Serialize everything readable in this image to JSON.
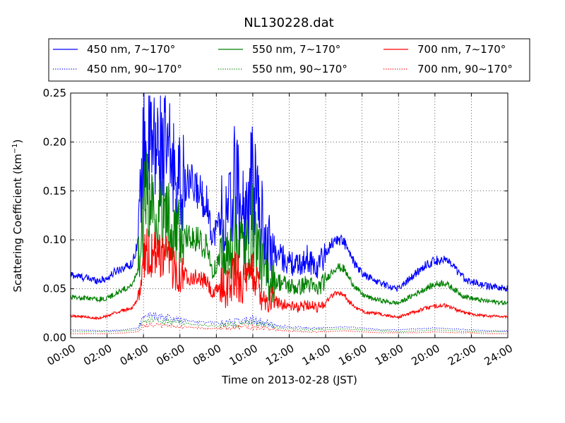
{
  "chart_data": {
    "type": "line",
    "title": "NL130228.dat",
    "xlabel": "Time on 2013-02-28 (JST)",
    "ylabel": "Scattering Coefficient (km",
    "ylabel_sup": "−1",
    "ylabel_close": ")",
    "xlim_hours": [
      0,
      24
    ],
    "ylim": [
      0,
      0.25
    ],
    "x_ticks": [
      "00:00",
      "02:00",
      "04:00",
      "06:00",
      "08:00",
      "10:00",
      "12:00",
      "14:00",
      "16:00",
      "18:00",
      "20:00",
      "22:00",
      "24:00"
    ],
    "y_ticks": [
      "0.00",
      "0.05",
      "0.10",
      "0.15",
      "0.20",
      "0.25"
    ],
    "grid": true,
    "legend_position": "top, above plot",
    "series": [
      {
        "name": "450 nm, 7∼170°",
        "color": "#0000ff",
        "style": "solid",
        "x": [
          0,
          1,
          1.5,
          2,
          2.5,
          3,
          3.4,
          3.7,
          4.0,
          4.1,
          4.3,
          4.6,
          5.0,
          5.5,
          6.0,
          6.5,
          7.0,
          7.5,
          7.8,
          8.2,
          8.6,
          9.0,
          9.4,
          9.7,
          10.0,
          10.3,
          10.7,
          11.0,
          11.5,
          12.0,
          12.5,
          13.0,
          13.5,
          14.0,
          14.3,
          14.6,
          15.0,
          15.3,
          15.7,
          16.0,
          16.5,
          17.0,
          17.5,
          18.0,
          18.5,
          19.0,
          19.5,
          20.0,
          20.5,
          21.0,
          21.5,
          22.0,
          22.5,
          23.0,
          23.5,
          24.0
        ],
        "y": [
          0.064,
          0.06,
          0.058,
          0.06,
          0.068,
          0.072,
          0.075,
          0.1,
          0.18,
          0.2,
          0.19,
          0.185,
          0.19,
          0.175,
          0.15,
          0.155,
          0.148,
          0.135,
          0.1,
          0.12,
          0.11,
          0.15,
          0.125,
          0.12,
          0.155,
          0.13,
          0.09,
          0.085,
          0.082,
          0.075,
          0.072,
          0.08,
          0.07,
          0.085,
          0.095,
          0.1,
          0.098,
          0.085,
          0.072,
          0.065,
          0.06,
          0.056,
          0.052,
          0.05,
          0.058,
          0.066,
          0.074,
          0.078,
          0.08,
          0.072,
          0.062,
          0.057,
          0.054,
          0.052,
          0.051,
          0.05
        ]
      },
      {
        "name": "450 nm, 90∼170°",
        "color": "#0000ff",
        "style": "dotted",
        "x": [
          0,
          2,
          3,
          3.7,
          4.0,
          4.5,
          5.0,
          6.0,
          7.0,
          8.0,
          9.0,
          10.0,
          11.0,
          12.0,
          13.0,
          14.0,
          15.0,
          16.0,
          17.0,
          18.0,
          19.0,
          20.0,
          21.0,
          22.0,
          23.0,
          24.0
        ],
        "y": [
          0.008,
          0.007,
          0.008,
          0.01,
          0.02,
          0.022,
          0.02,
          0.018,
          0.016,
          0.015,
          0.016,
          0.018,
          0.013,
          0.011,
          0.01,
          0.01,
          0.011,
          0.01,
          0.008,
          0.008,
          0.009,
          0.01,
          0.009,
          0.008,
          0.007,
          0.007
        ]
      },
      {
        "name": "550 nm, 7∼170°",
        "color": "#008000",
        "style": "solid",
        "x": [
          0,
          1,
          1.5,
          2,
          2.5,
          3,
          3.4,
          3.7,
          4.0,
          4.1,
          4.3,
          4.6,
          5.0,
          5.5,
          6.0,
          6.5,
          7.0,
          7.5,
          7.8,
          8.2,
          8.6,
          9.0,
          9.4,
          9.7,
          10.0,
          10.3,
          10.7,
          11.0,
          11.5,
          12.0,
          12.5,
          13.0,
          13.5,
          14.0,
          14.3,
          14.6,
          15.0,
          15.3,
          15.7,
          16.0,
          16.5,
          17.0,
          17.5,
          18.0,
          18.5,
          19.0,
          19.5,
          20.0,
          20.5,
          21.0,
          21.5,
          22.0,
          22.5,
          23.0,
          23.5,
          24.0
        ],
        "y": [
          0.041,
          0.04,
          0.039,
          0.04,
          0.045,
          0.05,
          0.055,
          0.07,
          0.12,
          0.145,
          0.125,
          0.13,
          0.12,
          0.115,
          0.105,
          0.1,
          0.098,
          0.09,
          0.068,
          0.08,
          0.075,
          0.1,
          0.09,
          0.085,
          0.11,
          0.085,
          0.06,
          0.058,
          0.056,
          0.052,
          0.05,
          0.055,
          0.048,
          0.058,
          0.066,
          0.072,
          0.07,
          0.06,
          0.05,
          0.044,
          0.04,
          0.038,
          0.036,
          0.035,
          0.04,
          0.045,
          0.05,
          0.054,
          0.056,
          0.05,
          0.043,
          0.04,
          0.038,
          0.037,
          0.036,
          0.035
        ]
      },
      {
        "name": "550 nm, 90∼170°",
        "color": "#008000",
        "style": "dotted",
        "x": [
          0,
          2,
          3,
          3.7,
          4.0,
          4.5,
          5.0,
          6.0,
          7.0,
          8.0,
          9.0,
          10.0,
          11.0,
          12.0,
          13.0,
          14.0,
          15.0,
          16.0,
          17.0,
          18.0,
          19.0,
          20.0,
          21.0,
          22.0,
          23.0,
          24.0
        ],
        "y": [
          0.006,
          0.006,
          0.007,
          0.008,
          0.016,
          0.018,
          0.016,
          0.015,
          0.013,
          0.012,
          0.013,
          0.015,
          0.011,
          0.009,
          0.008,
          0.008,
          0.009,
          0.008,
          0.007,
          0.006,
          0.007,
          0.008,
          0.007,
          0.006,
          0.006,
          0.006
        ]
      },
      {
        "name": "700 nm, 7∼170°",
        "color": "#ff0000",
        "style": "solid",
        "x": [
          0,
          1,
          1.5,
          2,
          2.5,
          3,
          3.4,
          3.7,
          4.0,
          4.1,
          4.3,
          4.6,
          5.0,
          5.5,
          6.0,
          6.5,
          7.0,
          7.5,
          7.8,
          8.2,
          8.6,
          9.0,
          9.4,
          9.7,
          10.0,
          10.3,
          10.7,
          11.0,
          11.5,
          12.0,
          12.5,
          13.0,
          13.5,
          14.0,
          14.3,
          14.6,
          15.0,
          15.3,
          15.7,
          16.0,
          16.5,
          17.0,
          17.5,
          18.0,
          18.5,
          19.0,
          19.5,
          20.0,
          20.5,
          21.0,
          21.5,
          22.0,
          22.5,
          23.0,
          23.5,
          24.0
        ],
        "y": [
          0.022,
          0.021,
          0.02,
          0.022,
          0.026,
          0.028,
          0.03,
          0.04,
          0.072,
          0.09,
          0.08,
          0.082,
          0.078,
          0.074,
          0.065,
          0.062,
          0.06,
          0.056,
          0.042,
          0.052,
          0.048,
          0.062,
          0.056,
          0.052,
          0.068,
          0.052,
          0.038,
          0.037,
          0.035,
          0.032,
          0.03,
          0.034,
          0.03,
          0.036,
          0.042,
          0.046,
          0.044,
          0.036,
          0.03,
          0.027,
          0.025,
          0.024,
          0.022,
          0.021,
          0.024,
          0.027,
          0.03,
          0.032,
          0.033,
          0.03,
          0.026,
          0.024,
          0.023,
          0.022,
          0.022,
          0.021
        ]
      },
      {
        "name": "700 nm, 90∼170°",
        "color": "#ff0000",
        "style": "dotted",
        "x": [
          0,
          2,
          3,
          3.7,
          4.0,
          4.5,
          5.0,
          6.0,
          7.0,
          8.0,
          9.0,
          10.0,
          11.0,
          12.0,
          13.0,
          14.0,
          15.0,
          16.0,
          17.0,
          18.0,
          19.0,
          20.0,
          21.0,
          22.0,
          23.0,
          24.0
        ],
        "y": [
          0.004,
          0.004,
          0.005,
          0.006,
          0.012,
          0.013,
          0.012,
          0.011,
          0.01,
          0.009,
          0.01,
          0.011,
          0.008,
          0.007,
          0.006,
          0.006,
          0.007,
          0.006,
          0.005,
          0.005,
          0.005,
          0.006,
          0.005,
          0.005,
          0.004,
          0.004
        ]
      }
    ]
  }
}
